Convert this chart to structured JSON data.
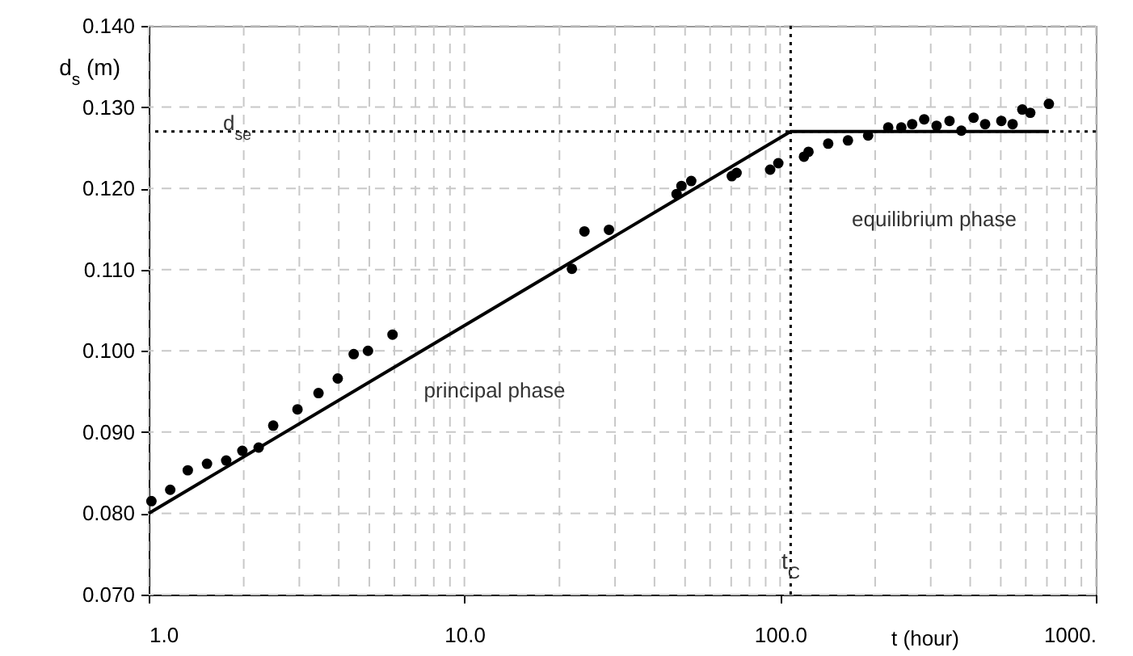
{
  "chart_data": {
    "type": "scatter",
    "xlabel": "t (hour)",
    "ylabel": "d$_{s}$ (m)",
    "log": "x",
    "grid": true,
    "marker": "circle",
    "xlim": [
      1,
      1000
    ],
    "xticks": [
      {
        "value": 1,
        "label": "1.0"
      },
      {
        "value": 10,
        "label": "10.0"
      },
      {
        "value": 100,
        "label": "100.0"
      },
      {
        "value": 1000,
        "label": "1000."
      }
    ],
    "ylim": [
      0.07,
      0.14
    ],
    "yticks": [
      {
        "value": 0.07,
        "label": "0.070"
      },
      {
        "value": 0.08,
        "label": "0.080"
      },
      {
        "value": 0.09,
        "label": "0.090"
      },
      {
        "value": 0.1,
        "label": "0.100"
      },
      {
        "value": 0.11,
        "label": "0.110"
      },
      {
        "value": 0.12,
        "label": "0.120"
      },
      {
        "value": 0.13,
        "label": "0.130"
      },
      {
        "value": 0.14,
        "label": "0.140"
      }
    ],
    "series": [
      {
        "color": "#000000",
        "x": [
          1.02,
          1.17,
          1.33,
          1.53,
          1.76,
          1.98,
          2.23,
          2.48,
          2.96,
          3.45,
          3.97,
          4.46,
          4.95,
          5.92,
          21.9,
          24,
          28.7,
          47,
          48.7,
          52.3,
          70.3,
          72.8,
          93,
          98.7,
          119,
          123,
          142,
          164,
          190,
          220,
          242,
          262,
          286,
          313,
          344,
          375,
          410,
          446,
          502,
          545,
          585,
          620,
          710
        ],
        "values": [
          0.0815,
          0.0829,
          0.0853,
          0.0861,
          0.0865,
          0.0877,
          0.0881,
          0.0908,
          0.0928,
          0.0948,
          0.0966,
          0.0996,
          0.1,
          0.102,
          0.1101,
          0.1147,
          0.1149,
          0.1193,
          0.1203,
          0.1209,
          0.1215,
          0.1219,
          0.1223,
          0.1231,
          0.1239,
          0.1245,
          0.1255,
          0.1259,
          0.1265,
          0.1275,
          0.1275,
          0.1279,
          0.1285,
          0.1277,
          0.1283,
          0.1271,
          0.1287,
          0.1279,
          0.1283,
          0.1279,
          0.1297,
          0.1293,
          0.1304
        ]
      },
      {
        "type": "line",
        "marker": "none",
        "color": "#000000",
        "line_style": "solid",
        "x": [
          1,
          108,
          710
        ],
        "values": [
          0.08,
          0.127,
          0.127
        ]
      }
    ],
    "ref_lines": [
      {
        "axis": "y",
        "value": 0.127,
        "label": "d$_{se}$",
        "line_style": "dotted",
        "color": "#000000"
      },
      {
        "axis": "x",
        "value": 108,
        "label": "t$_{C}$",
        "line_style": "dotted",
        "color": "#000000"
      }
    ],
    "annotations": [
      "principal phase",
      "equilibrium phase"
    ]
  }
}
